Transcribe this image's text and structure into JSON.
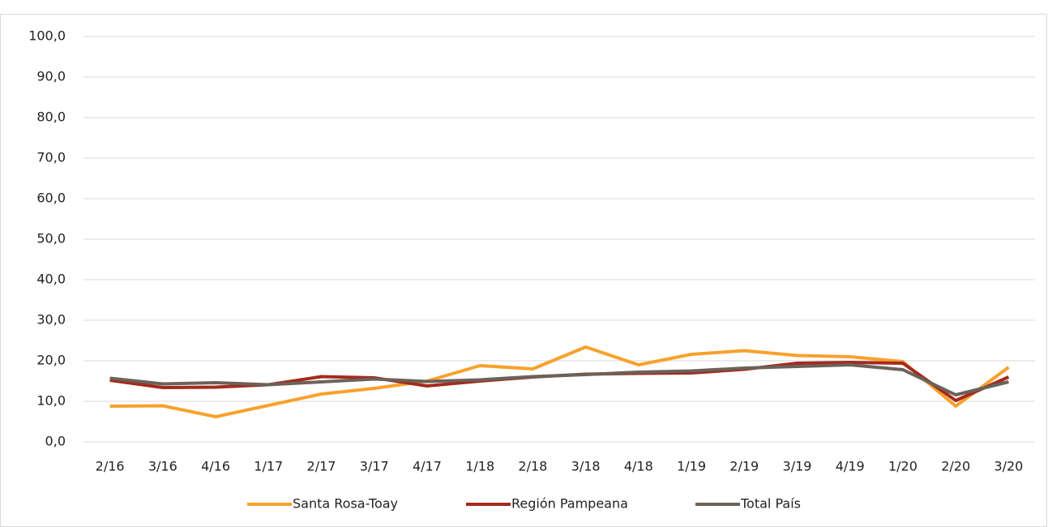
{
  "chart_data": {
    "type": "line",
    "categories": [
      "2/16",
      "3/16",
      "4/16",
      "1/17",
      "2/17",
      "3/17",
      "4/17",
      "1/18",
      "2/18",
      "3/18",
      "4/18",
      "1/19",
      "2/19",
      "3/19",
      "4/19",
      "1/20",
      "2/20",
      "3/20"
    ],
    "series": [
      {
        "name": "Santa Rosa-Toay",
        "color": "#f9a12c",
        "values": [
          8.8,
          8.9,
          6.2,
          9.0,
          11.8,
          13.2,
          15.0,
          18.8,
          18.0,
          23.4,
          19.0,
          21.6,
          22.5,
          21.3,
          21.0,
          19.8,
          8.8,
          18.4
        ]
      },
      {
        "name": "Región Pampeana",
        "color": "#a52a1d",
        "values": [
          15.2,
          13.4,
          13.5,
          14.1,
          16.1,
          15.8,
          13.8,
          15.0,
          16.0,
          16.7,
          16.9,
          17.0,
          17.9,
          19.4,
          19.6,
          19.4,
          10.2,
          16.0
        ]
      },
      {
        "name": "Total País",
        "color": "#6b6259",
        "values": [
          15.7,
          14.3,
          14.6,
          14.1,
          14.8,
          15.5,
          14.9,
          15.3,
          16.1,
          16.6,
          17.2,
          17.5,
          18.2,
          18.6,
          19.0,
          17.8,
          11.6,
          14.8
        ]
      }
    ],
    "ylim": [
      0,
      100
    ],
    "yticks": [
      {
        "value": 0,
        "label": "0,0"
      },
      {
        "value": 10,
        "label": "10,0"
      },
      {
        "value": 20,
        "label": "20,0"
      },
      {
        "value": 30,
        "label": "30,0"
      },
      {
        "value": 40,
        "label": "40,0"
      },
      {
        "value": 50,
        "label": "50,0"
      },
      {
        "value": 60,
        "label": "60,0"
      },
      {
        "value": 70,
        "label": "70,0"
      },
      {
        "value": 80,
        "label": "80,0"
      },
      {
        "value": 90,
        "label": "90,0"
      },
      {
        "value": 100,
        "label": "100,0"
      }
    ],
    "grid": true,
    "legend": "bottom"
  }
}
